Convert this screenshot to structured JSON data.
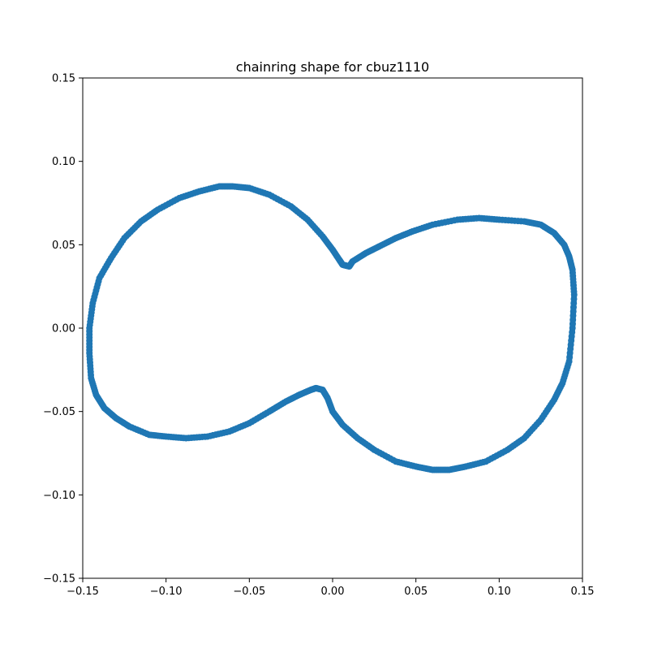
{
  "chart_data": {
    "type": "scatter",
    "title": "chainring shape for cbuz1110",
    "xlabel": "",
    "ylabel": "",
    "xlim": [
      -0.15,
      0.15
    ],
    "ylim": [
      -0.15,
      0.15
    ],
    "xticks": [
      -0.15,
      -0.1,
      -0.05,
      0.0,
      0.05,
      0.1,
      0.15
    ],
    "yticks": [
      -0.15,
      -0.1,
      -0.05,
      0.0,
      0.05,
      0.1,
      0.15
    ],
    "xtick_labels": [
      "−0.15",
      "−0.10",
      "−0.05",
      "0.00",
      "0.05",
      "0.10",
      "0.15"
    ],
    "ytick_labels": [
      "−0.15",
      "−0.10",
      "−0.05",
      "0.00",
      "0.05",
      "0.10",
      "0.15"
    ],
    "grid": false,
    "marker_color": "#1f77b4",
    "series": [
      {
        "x": [
          0.145,
          0.144,
          0.142,
          0.139,
          0.133,
          0.125,
          0.115,
          0.1,
          0.088,
          0.075,
          0.06,
          0.048,
          0.038,
          0.028,
          0.02,
          0.012,
          0.01,
          0.006,
          0.004,
          0.0,
          -0.006,
          -0.015,
          -0.025,
          -0.038,
          -0.05,
          -0.06,
          -0.068,
          -0.08,
          -0.092,
          -0.105,
          -0.115,
          -0.125,
          -0.133,
          -0.14,
          -0.144,
          -0.146,
          -0.146,
          -0.145,
          -0.142,
          -0.137,
          -0.13,
          -0.122,
          -0.11,
          -0.1,
          -0.088,
          -0.075,
          -0.062,
          -0.05,
          -0.038,
          -0.028,
          -0.02,
          -0.013,
          -0.01,
          -0.006,
          -0.003,
          0.0,
          0.006,
          0.015,
          0.025,
          0.038,
          0.05,
          0.06,
          0.07,
          0.08,
          0.092,
          0.105,
          0.115,
          0.125,
          0.133,
          0.138,
          0.142,
          0.144
        ],
        "y": [
          0.02,
          0.035,
          0.043,
          0.05,
          0.057,
          0.062,
          0.064,
          0.065,
          0.066,
          0.065,
          0.062,
          0.058,
          0.054,
          0.049,
          0.045,
          0.04,
          0.037,
          0.038,
          0.041,
          0.047,
          0.055,
          0.065,
          0.073,
          0.08,
          0.084,
          0.085,
          0.085,
          0.082,
          0.078,
          0.071,
          0.064,
          0.054,
          0.042,
          0.03,
          0.015,
          0.0,
          -0.015,
          -0.03,
          -0.04,
          -0.048,
          -0.054,
          -0.059,
          -0.064,
          -0.065,
          -0.066,
          -0.065,
          -0.062,
          -0.057,
          -0.05,
          -0.044,
          -0.04,
          -0.037,
          -0.036,
          -0.037,
          -0.042,
          -0.05,
          -0.058,
          -0.066,
          -0.073,
          -0.08,
          -0.083,
          -0.085,
          -0.085,
          -0.083,
          -0.08,
          -0.073,
          -0.066,
          -0.055,
          -0.043,
          -0.033,
          -0.02,
          0.0
        ]
      }
    ]
  }
}
